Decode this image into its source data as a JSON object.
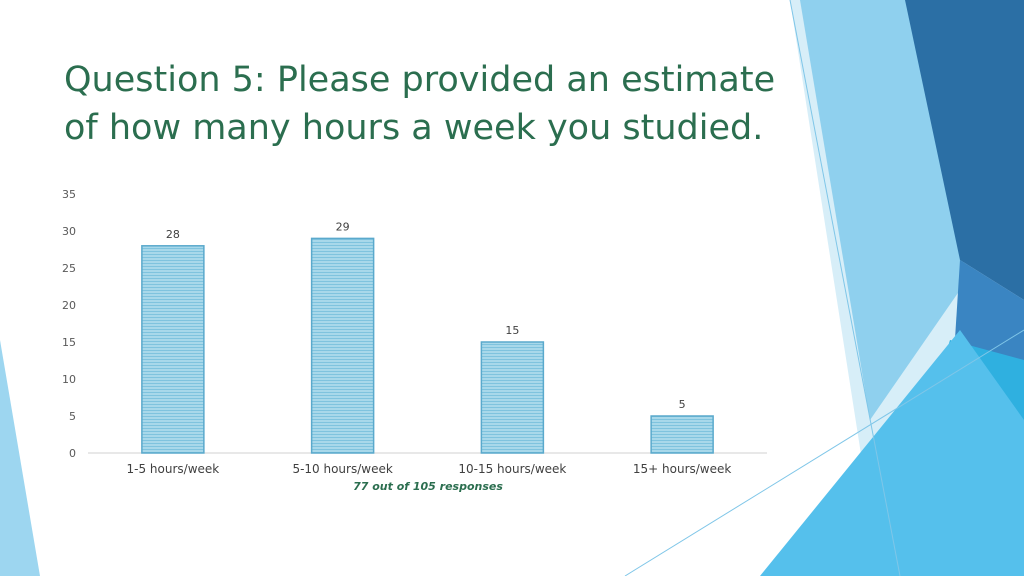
{
  "slide": {
    "title": "Question 5: Please provided an estimate of how many hours a week you studied.",
    "note": "77 out of 105 responses"
  },
  "colors": {
    "title": "#2b6e4f",
    "bar_fill": "#a8d8ea",
    "bar_stripe": "#7fc3de",
    "bar_border": "#5aa9cc",
    "decor_light": "#9dd6f0",
    "decor_mid": "#4fb3e3",
    "decor_dark": "#2b6fa5"
  },
  "chart_data": {
    "type": "bar",
    "categories": [
      "1-5 hours/week",
      "5-10 hours/week",
      "10-15 hours/week",
      "15+ hours/week"
    ],
    "values": [
      28,
      29,
      15,
      5
    ],
    "data_labels": [
      "28",
      "29",
      "15",
      "5"
    ],
    "yticks": [
      0,
      5,
      10,
      15,
      20,
      25,
      30,
      35
    ],
    "ylim": [
      0,
      35
    ],
    "grid": false,
    "legend": "none"
  }
}
